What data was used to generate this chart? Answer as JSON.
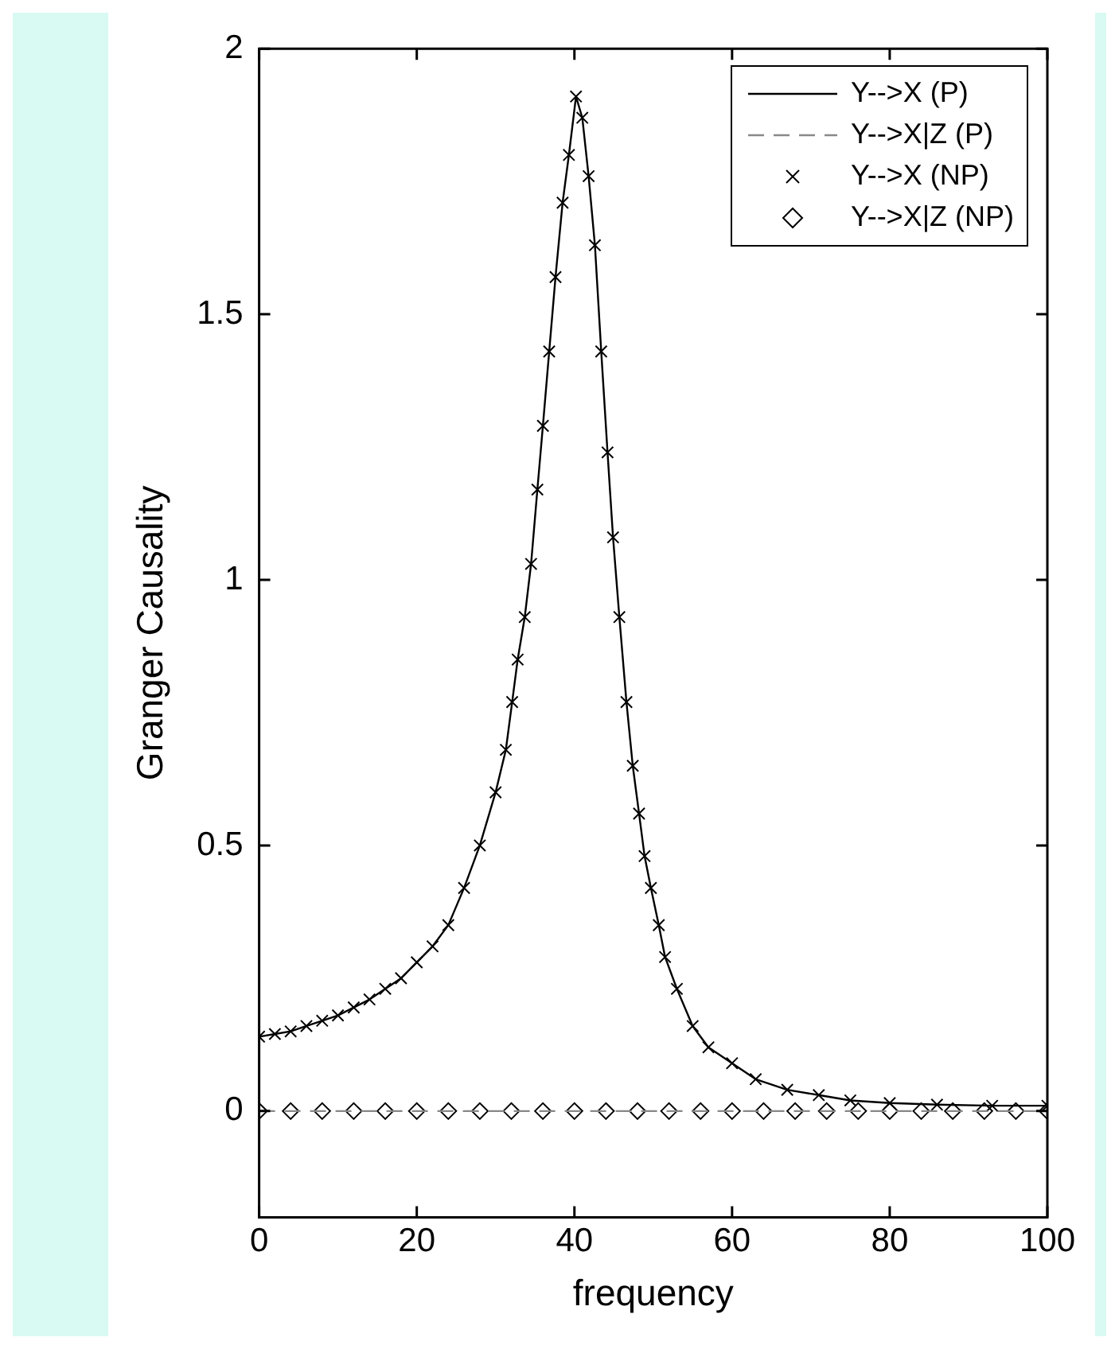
{
  "chart_data": {
    "type": "line",
    "xlabel": "frequency",
    "ylabel": "Granger Causality",
    "xlim": [
      0,
      100
    ],
    "xticks": [
      0,
      20,
      40,
      60,
      80,
      100
    ],
    "ylim": [
      -0.2,
      2
    ],
    "yticks": [
      0,
      0.5,
      1,
      {
        "value": 1.5,
        "label": "1.5"
      },
      2
    ],
    "grid": false,
    "legend": "top right",
    "series": [
      {
        "name": "Y-->X (P)",
        "color": "#000000",
        "marker": "none",
        "line_style": "solid",
        "x": [
          0,
          2,
          4,
          6,
          8,
          10,
          12,
          14,
          16,
          18,
          20,
          22,
          24,
          26,
          28,
          30,
          31.3,
          32.1,
          32.8,
          33.7,
          34.5,
          35.3,
          36,
          36.8,
          37.6,
          38.5,
          39.3,
          40.2,
          41,
          41.8,
          42.6,
          43.4,
          44.2,
          44.9,
          45.7,
          46.6,
          47.4,
          48.2,
          48.9,
          49.7,
          50.7,
          51.5,
          53,
          55,
          57,
          60,
          63,
          67,
          71,
          75,
          80,
          86,
          93,
          100
        ],
        "values": [
          0.14,
          0.145,
          0.15,
          0.16,
          0.17,
          0.18,
          0.195,
          0.21,
          0.23,
          0.25,
          0.28,
          0.31,
          0.35,
          0.42,
          0.5,
          0.6,
          0.68,
          0.77,
          0.85,
          0.93,
          1.03,
          1.17,
          1.29,
          1.43,
          1.57,
          1.71,
          1.8,
          1.91,
          1.87,
          1.76,
          1.63,
          1.43,
          1.24,
          1.08,
          0.93,
          0.77,
          0.65,
          0.56,
          0.48,
          0.42,
          0.35,
          0.29,
          0.23,
          0.16,
          0.12,
          0.09,
          0.06,
          0.04,
          0.03,
          0.02,
          0.015,
          0.012,
          0.01,
          0.01
        ]
      },
      {
        "name": "Y-->X|Z (P)",
        "color": "#888888",
        "marker": "none",
        "line_style": "dashed",
        "x": [
          0,
          100
        ],
        "values": [
          0,
          0
        ]
      },
      {
        "name": "Y-->X (NP)",
        "type": "scatter",
        "color": "#000000",
        "marker": "cross",
        "x": [
          0,
          2,
          4,
          6,
          8,
          10,
          12,
          14,
          16,
          18,
          20,
          22,
          24,
          26,
          28,
          30,
          31.3,
          32.1,
          32.8,
          33.7,
          34.5,
          35.3,
          36,
          36.8,
          37.6,
          38.5,
          39.3,
          40.2,
          41,
          41.8,
          42.6,
          43.4,
          44.2,
          44.9,
          45.7,
          46.6,
          47.4,
          48.2,
          48.9,
          49.7,
          50.7,
          51.5,
          53,
          55,
          57,
          60,
          63,
          67,
          71,
          75,
          80,
          86,
          93,
          100
        ],
        "values": [
          0.14,
          0.145,
          0.15,
          0.16,
          0.17,
          0.18,
          0.195,
          0.21,
          0.23,
          0.25,
          0.28,
          0.31,
          0.35,
          0.42,
          0.5,
          0.6,
          0.68,
          0.77,
          0.85,
          0.93,
          1.03,
          1.17,
          1.29,
          1.43,
          1.57,
          1.71,
          1.8,
          1.91,
          1.87,
          1.76,
          1.63,
          1.43,
          1.24,
          1.08,
          0.93,
          0.77,
          0.65,
          0.56,
          0.48,
          0.42,
          0.35,
          0.29,
          0.23,
          0.16,
          0.12,
          0.09,
          0.06,
          0.04,
          0.03,
          0.02,
          0.015,
          0.012,
          0.01,
          0.01
        ]
      },
      {
        "name": "Y-->X|Z (NP)",
        "type": "scatter",
        "color": "#000000",
        "marker": "diamond",
        "x": [
          0,
          4,
          8,
          12,
          16,
          20,
          24,
          28,
          32,
          36,
          40,
          44,
          48,
          52,
          56,
          60,
          64,
          68,
          72,
          76,
          80,
          84,
          88,
          92,
          96,
          100
        ],
        "values": [
          0,
          0,
          0,
          0,
          0,
          0,
          0,
          0,
          0,
          0,
          0,
          0,
          0,
          0,
          0,
          0,
          0,
          0,
          0,
          0,
          0,
          0,
          0,
          0,
          0,
          0
        ]
      }
    ]
  }
}
